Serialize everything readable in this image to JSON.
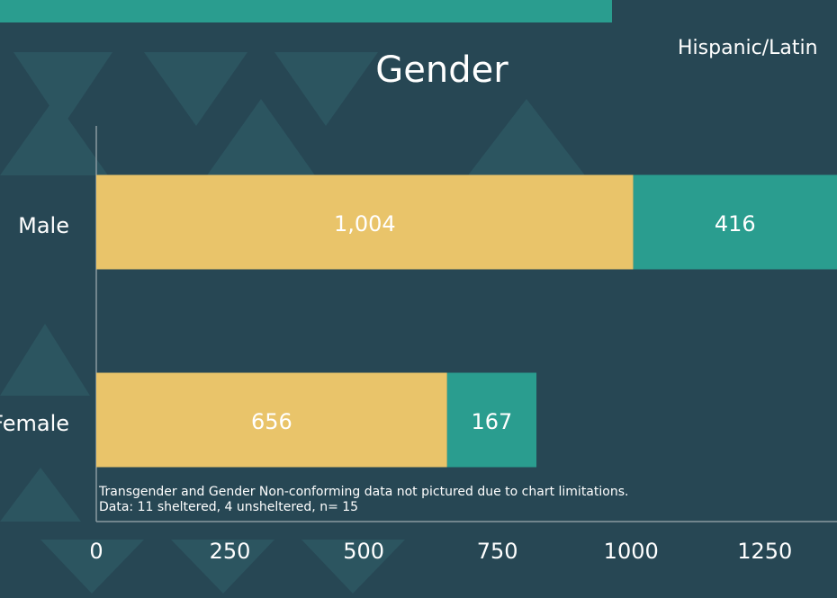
{
  "chart_data": {
    "type": "stacked-barh",
    "title": "Gender",
    "legend_text": "Hispanic/Latin",
    "categories": [
      "Male",
      "Female"
    ],
    "series": [
      {
        "color": "#e9c46a",
        "values": [
          1004,
          656
        ],
        "value_labels": [
          "1,004",
          "656"
        ]
      },
      {
        "color": "#2a9d8f",
        "values": [
          416,
          167
        ]
      }
    ],
    "xlim": [
      0,
      1385
    ],
    "xticks": [
      0,
      250,
      500,
      750,
      1000,
      1250
    ],
    "annotations": [
      "Transgender and Gender Non-conforming data not pictured due to chart limitations.",
      "Data: 11 sheltered, 4 unsheltered, n= 15"
    ]
  }
}
